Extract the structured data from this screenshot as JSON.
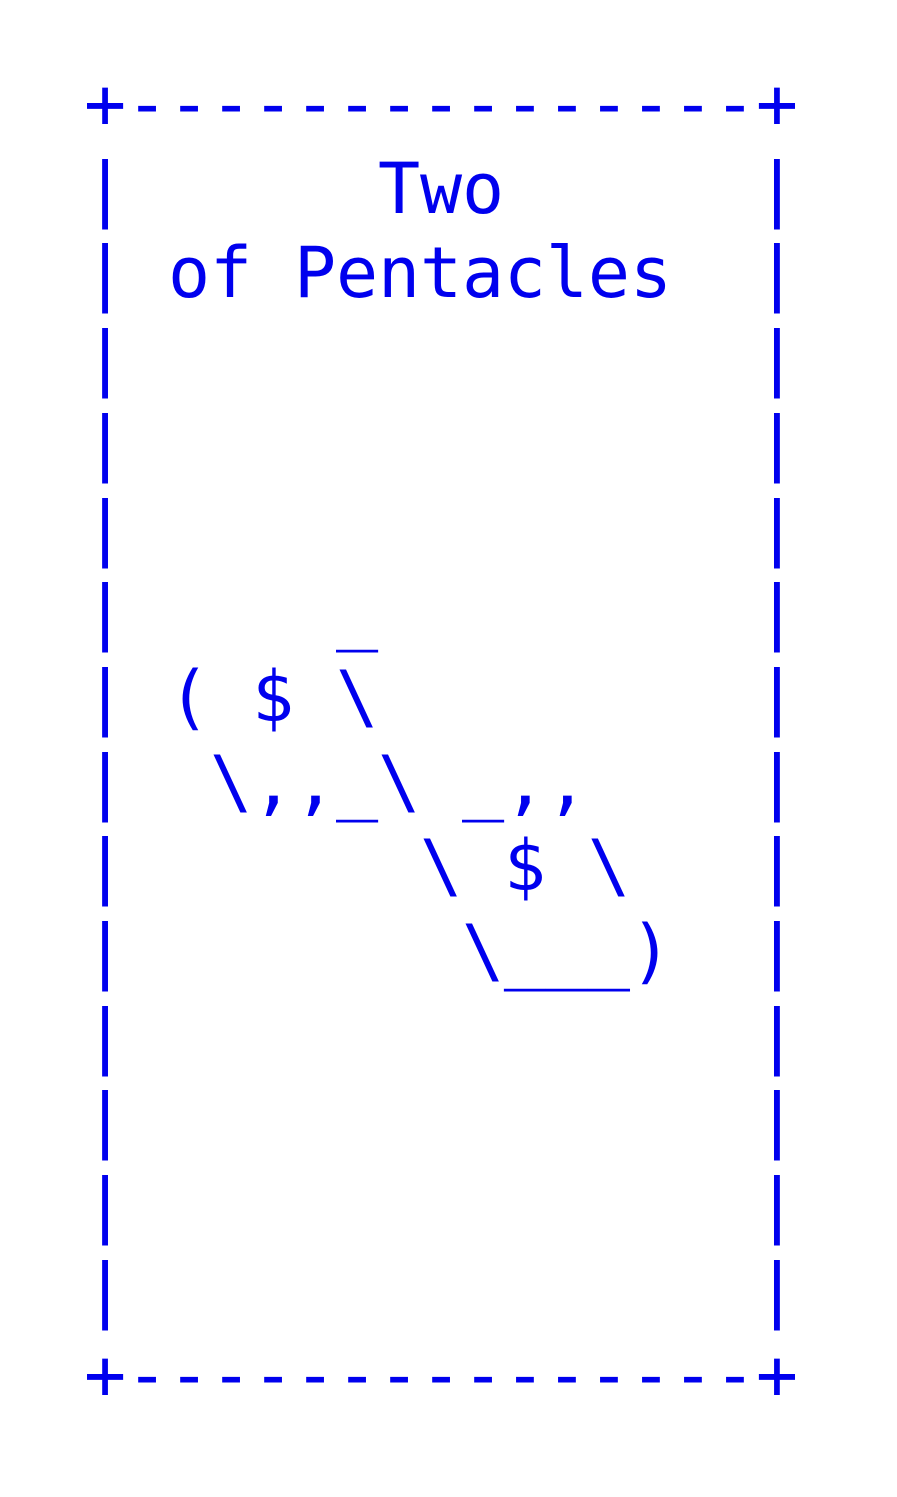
{
  "card": {
    "text_color": "#0000ee",
    "lines": [
      "+---------------+",
      "|      Two      |",
      "| of Pentacles  |",
      "|               |",
      "|               |",
      "|               |",
      "|     _         |",
      "| ( $ \\         |",
      "|  \\,,_\\ _,,    |",
      "|       \\ $ \\   |",
      "|        \\___)  |",
      "|               |",
      "|               |",
      "|               |",
      "|               |",
      "+---------------+"
    ]
  }
}
